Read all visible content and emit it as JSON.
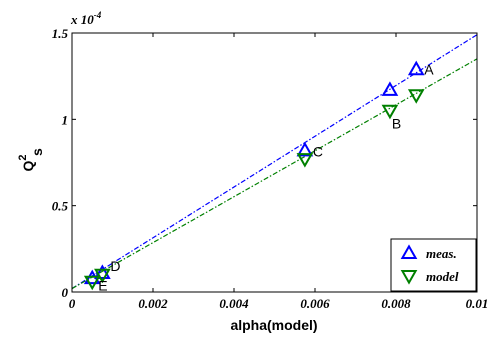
{
  "chart_data": {
    "type": "scatter",
    "xlabel": "alpha(model)",
    "ylabel": "Q",
    "ylabel_sup": "2",
    "ylabel_sub": "s",
    "y_exponent_prefix": "x 10",
    "y_exponent_power": "-4",
    "xlim": [
      0,
      0.01
    ],
    "ylim": [
      0,
      1.5
    ],
    "x_ticks": [
      0,
      0.002,
      0.004,
      0.006,
      0.008,
      0.01
    ],
    "x_tick_labels": [
      "0",
      "0.002",
      "0.004",
      "0.006",
      "0.008",
      "0.01"
    ],
    "y_ticks": [
      0,
      0.5,
      1,
      1.5
    ],
    "y_tick_labels": [
      "0",
      "0.5",
      "1",
      "1.5"
    ],
    "grid": false,
    "legend_position": "bottom-right",
    "series": [
      {
        "name": "meas.",
        "color": "#0000ff",
        "marker": "triangle-up",
        "points": [
          {
            "label": "A",
            "x": 0.0085,
            "y": 1.29
          },
          {
            "label": "B",
            "x": 0.00785,
            "y": 1.17
          },
          {
            "label": "C",
            "x": 0.00575,
            "y": 0.82
          },
          {
            "label": "D",
            "x": 0.00075,
            "y": 0.11
          },
          {
            "label": "E",
            "x": 0.0005,
            "y": 0.08
          }
        ],
        "fit": {
          "x1": 0,
          "y1": 0.02,
          "x2": 0.01,
          "y2": 1.49
        }
      },
      {
        "name": "model",
        "color": "#008000",
        "marker": "triangle-down",
        "points": [
          {
            "label": "A",
            "x": 0.0085,
            "y": 1.14
          },
          {
            "label": "B",
            "x": 0.00785,
            "y": 1.05
          },
          {
            "label": "C",
            "x": 0.00575,
            "y": 0.77
          },
          {
            "label": "D",
            "x": 0.00075,
            "y": 0.1
          },
          {
            "label": "E",
            "x": 0.0005,
            "y": 0.06
          }
        ],
        "fit": {
          "x1": 0,
          "y1": 0.02,
          "x2": 0.01,
          "y2": 1.35
        }
      }
    ],
    "point_labels": [
      "A",
      "B",
      "C",
      "D",
      "E"
    ]
  }
}
